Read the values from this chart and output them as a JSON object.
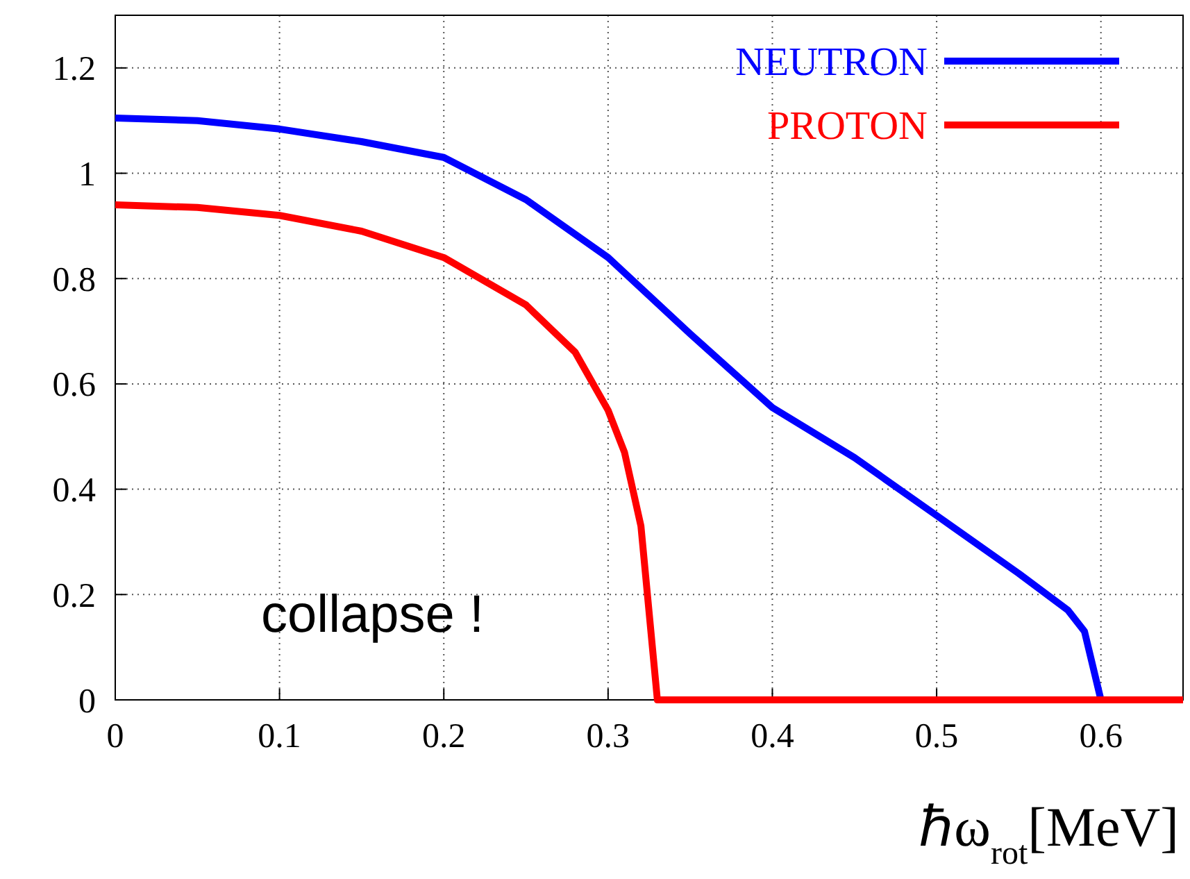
{
  "chart_data": {
    "type": "line",
    "xlabel": "ℏω$_{rot}$[MeV]",
    "annotations": [
      "collapse !"
    ],
    "xlim": [
      0,
      0.65
    ],
    "ylim": [
      0,
      1.3
    ],
    "xticks": [
      0,
      0.1,
      0.2,
      0.3,
      0.4,
      0.5,
      0.6
    ],
    "yticks": [
      0,
      0.2,
      0.4,
      0.6,
      0.8,
      1,
      1.2
    ],
    "grid": true,
    "legend": "top right",
    "line_style": "solid",
    "marker": "none",
    "series": [
      {
        "name": "NEUTRON",
        "color": "#0000ff",
        "x": [
          0,
          0.05,
          0.1,
          0.15,
          0.2,
          0.25,
          0.3,
          0.35,
          0.4,
          0.45,
          0.5,
          0.55,
          0.58,
          0.59,
          0.6,
          0.65
        ],
        "values": [
          1.105,
          1.1,
          1.084,
          1.06,
          1.03,
          0.95,
          0.84,
          0.695,
          0.555,
          0.46,
          0.35,
          0.24,
          0.17,
          0.13,
          0,
          0
        ]
      },
      {
        "name": "PROTON",
        "color": "#ff0000",
        "x": [
          0,
          0.05,
          0.1,
          0.15,
          0.2,
          0.25,
          0.28,
          0.3,
          0.31,
          0.32,
          0.33,
          0.65
        ],
        "values": [
          0.94,
          0.935,
          0.92,
          0.89,
          0.84,
          0.75,
          0.66,
          0.55,
          0.47,
          0.33,
          0,
          0
        ]
      }
    ]
  }
}
